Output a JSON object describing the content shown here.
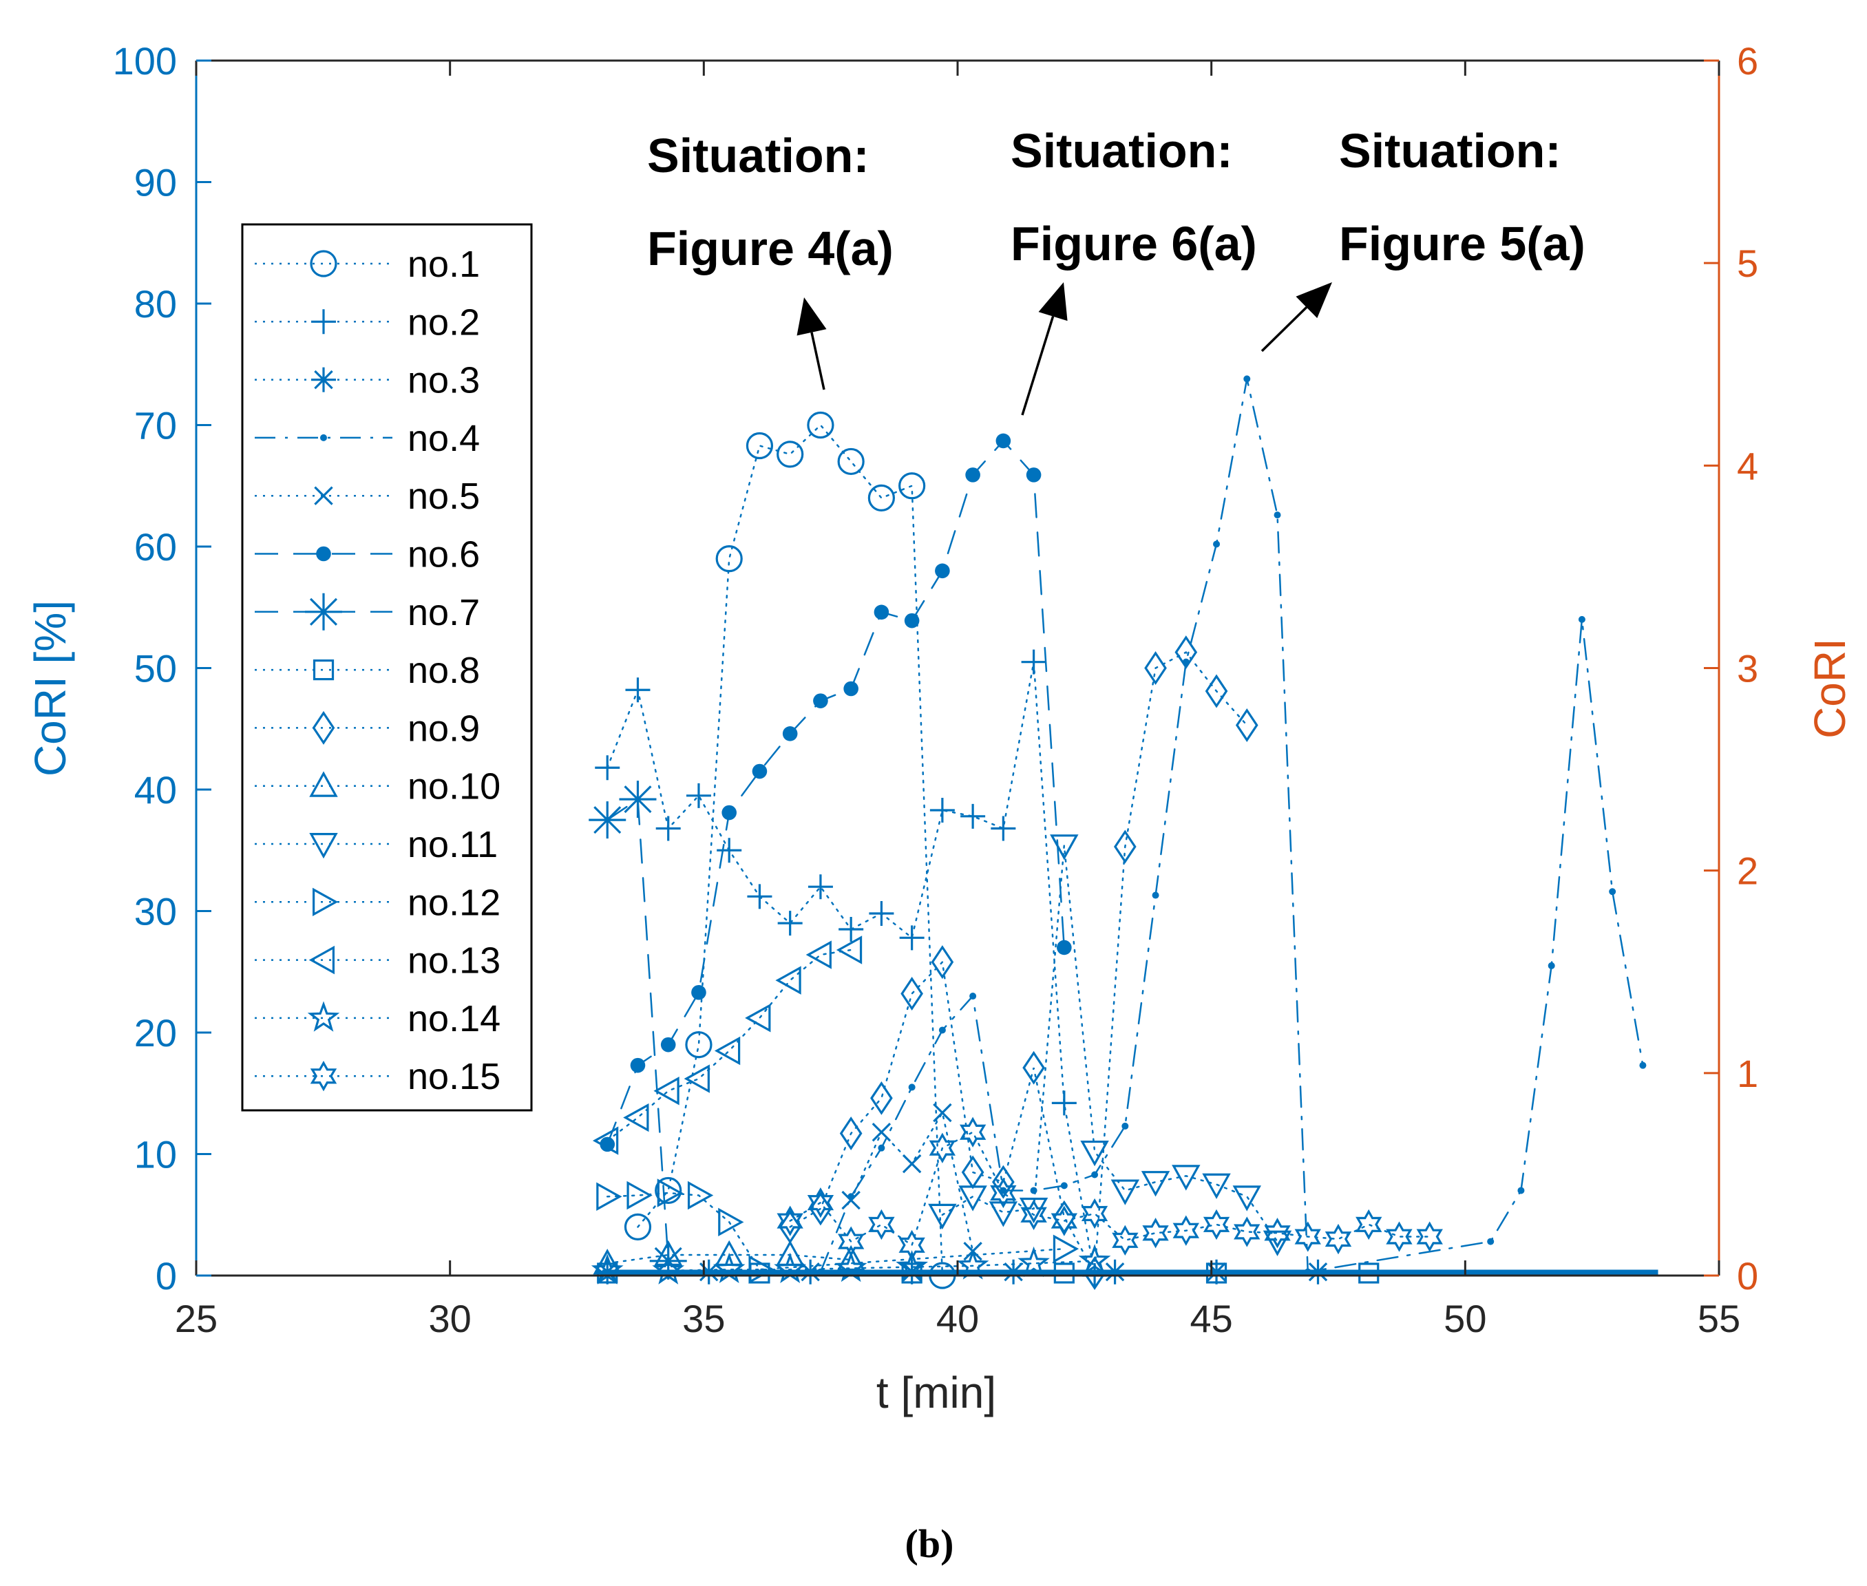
{
  "chart_data": {
    "type": "line",
    "xlabel": "t [min]",
    "ylabel_left": "CoRI [%]",
    "ylabel_right": "CoRI",
    "xlim": [
      25,
      55
    ],
    "ylim_left": [
      0,
      100
    ],
    "ylim_right": [
      0,
      6
    ],
    "xticks": [
      25,
      30,
      35,
      40,
      45,
      50,
      55
    ],
    "yticks_left": [
      0,
      10,
      20,
      30,
      40,
      50,
      60,
      70,
      80,
      90,
      100
    ],
    "yticks_right": [
      0,
      1,
      2,
      3,
      4,
      5,
      6
    ],
    "colors": {
      "left_axis": "#0072BD",
      "right_axis": "#D95319",
      "series": "#0072BD"
    },
    "caption": "(b)",
    "annotations": [
      {
        "line1": "Situation:",
        "line2": "Figure 4(a)",
        "point": [
          37.3,
          70
        ]
      },
      {
        "line1": "Situation:",
        "line2": "Figure 6(a)",
        "point": [
          41.2,
          70
        ]
      },
      {
        "line1": "Situation:",
        "line2": "Figure 5(a)",
        "point": [
          45.8,
          76
        ]
      }
    ],
    "series": [
      {
        "name": "no.1",
        "marker": "circle",
        "line": "dotted",
        "x": [
          33.7,
          34.3,
          34.9,
          35.5,
          36.1,
          36.7,
          37.3,
          37.9,
          38.5,
          39.1,
          39.7
        ],
        "y": [
          4,
          7,
          19,
          59,
          68.3,
          67.6,
          70,
          67,
          64,
          65,
          0
        ]
      },
      {
        "name": "no.2",
        "marker": "plus",
        "line": "dotted",
        "x": [
          33.1,
          33.7,
          34.3,
          34.9,
          35.5,
          36.1,
          36.7,
          37.3,
          37.9,
          38.5,
          39.1,
          39.7,
          40.3,
          40.9,
          41.5,
          42.1,
          42.7
        ],
        "y": [
          41.8,
          48.2,
          36.8,
          39.5,
          35,
          31.2,
          29,
          32,
          28.5,
          29.8,
          27.8,
          38.3,
          37.8,
          36.8,
          50.5,
          14.2,
          0
        ]
      },
      {
        "name": "no.3",
        "marker": "asterisk",
        "line": "dotted",
        "x": [
          33.1,
          35.1,
          37.1,
          39.1,
          41.1,
          43.1,
          45.1,
          47.1
        ],
        "y": [
          0.3,
          0.3,
          0.3,
          0.3,
          0.3,
          0.3,
          0.3,
          0.3
        ]
      },
      {
        "name": "no.4",
        "marker": "point",
        "line": "dashdot",
        "x": [
          37.3,
          37.9,
          38.5,
          39.1,
          39.7,
          40.3,
          40.9,
          41.5,
          42.1,
          42.7,
          43.3,
          43.9,
          44.5,
          45.1,
          45.7,
          46.3,
          46.9,
          50.5,
          51.1,
          51.7,
          52.3,
          52.9,
          53.5
        ],
        "y": [
          0.3,
          6.5,
          10.5,
          15.5,
          20.2,
          23,
          7,
          7,
          7.4,
          8.3,
          12.3,
          31.3,
          50.5,
          60.2,
          73.8,
          62.6,
          0.3,
          2.8,
          7,
          25.5,
          54,
          31.6,
          17.3
        ]
      },
      {
        "name": "no.5",
        "marker": "cross",
        "line": "dotted",
        "x": [
          37.9,
          38.5,
          39.1,
          39.7,
          40.3
        ],
        "y": [
          6.2,
          11.8,
          9.2,
          13.4,
          2
        ]
      },
      {
        "name": "no.6",
        "marker": "filled-circle",
        "line": "dashed",
        "x": [
          33.1,
          33.7,
          34.3,
          34.9,
          35.5,
          36.1,
          36.7,
          37.3,
          37.9,
          38.5,
          39.1,
          39.7,
          40.3,
          40.9,
          41.5,
          42.1
        ],
        "y": [
          10.8,
          17.3,
          19,
          23.3,
          38.1,
          41.5,
          44.6,
          47.3,
          48.3,
          54.6,
          53.9,
          58,
          65.9,
          68.7,
          65.9,
          27
        ]
      },
      {
        "name": "no.7",
        "marker": "big-asterisk",
        "line": "dashed",
        "x": [
          33.1,
          33.7,
          34.3
        ],
        "y": [
          37.5,
          39.2,
          1.2
        ]
      },
      {
        "name": "no.8",
        "marker": "square",
        "line": "dotted",
        "x": [
          33.1,
          36.1,
          39.1,
          42.1,
          45.1,
          48.1
        ],
        "y": [
          0.2,
          0.2,
          0.2,
          0.2,
          0.2,
          0.2
        ]
      },
      {
        "name": "no.9",
        "marker": "diamond",
        "line": "dotted",
        "x": [
          36.7,
          37.3,
          37.9,
          38.5,
          39.1,
          39.7,
          40.3,
          40.9,
          41.5,
          42.1,
          42.7,
          43.3,
          43.9,
          44.5,
          45.1,
          45.7
        ],
        "y": [
          4,
          5.5,
          11.7,
          14.6,
          23.2,
          25.8,
          8.5,
          7.7,
          17.1,
          4.8,
          0.2,
          35.3,
          50,
          51.3,
          48.1,
          45.3
        ]
      },
      {
        "name": "no.10",
        "marker": "triangle-up",
        "line": "dotted",
        "x": [
          33.1,
          34.3,
          35.5,
          36.7,
          37.9
        ],
        "y": [
          1,
          1.7,
          1.7,
          1.7,
          1.3
        ]
      },
      {
        "name": "no.11",
        "marker": "triangle-down",
        "line": "dotted",
        "x": [
          39.7,
          40.3,
          40.9,
          41.5,
          42.1,
          42.7,
          43.3,
          43.9,
          44.5,
          45.1,
          45.7,
          46.3
        ],
        "y": [
          5,
          6.5,
          5.2,
          5.5,
          35.4,
          10.2,
          7,
          7.7,
          8.2,
          7.5,
          6.5,
          2.8
        ]
      },
      {
        "name": "no.12",
        "marker": "triangle-right",
        "line": "dotted",
        "x": [
          33.1,
          33.7,
          34.3,
          34.9,
          35.5,
          36.1,
          42.1
        ],
        "y": [
          6.5,
          6.6,
          6.8,
          6.6,
          4.4,
          0.5,
          2.2
        ]
      },
      {
        "name": "no.13",
        "marker": "triangle-left",
        "line": "dotted",
        "x": [
          33.1,
          33.7,
          34.3,
          34.9,
          35.5,
          36.1,
          36.7,
          37.3,
          37.9
        ],
        "y": [
          11.1,
          13,
          15.2,
          16.2,
          18.5,
          21.2,
          24.3,
          26.4,
          26.8
        ]
      },
      {
        "name": "no.14",
        "marker": "pentagram",
        "line": "dotted",
        "x": [
          33.1,
          34.3,
          35.5,
          36.7,
          37.9,
          39.1,
          40.3,
          41.5,
          42.7
        ],
        "y": [
          0.4,
          0.4,
          0.5,
          0.5,
          0.6,
          0.7,
          0.8,
          1,
          1.2
        ]
      },
      {
        "name": "no.15",
        "marker": "hexagram",
        "line": "dotted",
        "x": [
          36.7,
          37.3,
          37.9,
          38.5,
          39.1,
          39.7,
          40.3,
          40.9,
          41.5,
          42.1,
          42.7,
          43.3,
          43.9,
          44.5,
          45.1,
          45.7,
          46.3,
          46.9,
          47.5,
          48.1,
          48.7,
          49.3
        ],
        "y": [
          4.5,
          6,
          2.8,
          4.2,
          2.5,
          10.5,
          11.8,
          6.8,
          5,
          4.5,
          5.1,
          2.9,
          3.5,
          3.7,
          4.2,
          3.6,
          3.5,
          3.2,
          3,
          4.2,
          3.2,
          3.2
        ]
      }
    ]
  }
}
